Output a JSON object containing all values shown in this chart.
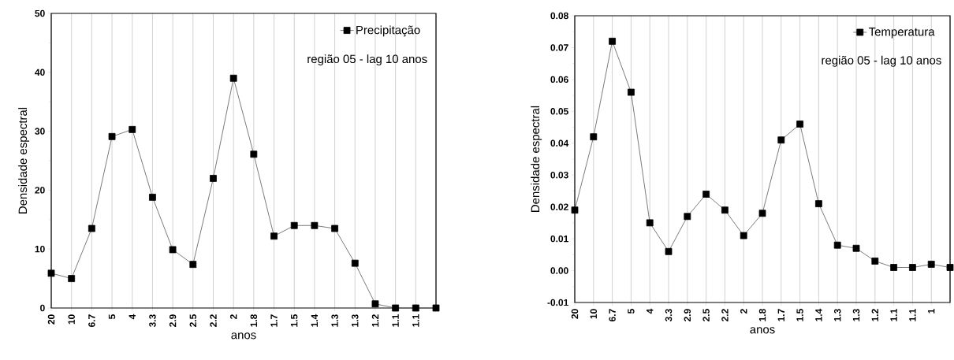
{
  "chart_data": [
    {
      "type": "line",
      "xlabel": "anos",
      "ylabel": "Densidade espectral",
      "categories": [
        "20",
        "10",
        "6.7",
        "5",
        "4",
        "3.3",
        "2.9",
        "2.5",
        "2.2",
        "2",
        "1.8",
        "1.7",
        "1.5",
        "1.4",
        "1.3",
        "1.3",
        "1.2",
        "1.1",
        "1.1",
        null
      ],
      "series": [
        {
          "name": "Precipitação",
          "color": "#000000",
          "values": [
            5.9,
            5.0,
            13.5,
            29.1,
            30.3,
            18.8,
            9.9,
            7.4,
            22.0,
            39.0,
            26.1,
            12.2,
            14.0,
            14.0,
            13.5,
            7.6,
            0.7,
            0,
            0,
            0
          ]
        }
      ],
      "ylim": [
        0,
        50
      ],
      "yticks": [
        0,
        10,
        20,
        30,
        40,
        50
      ],
      "grid": "x",
      "legend": "top right",
      "marker": "square",
      "annotations": [
        "região 05 - lag 10 anos"
      ]
    },
    {
      "type": "line",
      "xlabel": "anos",
      "ylabel": "Densidade espectral",
      "categories": [
        "20",
        "10",
        "6.7",
        "5",
        "4",
        "3.3",
        "2.9",
        "2.5",
        "2.2",
        "2",
        "1.8",
        "1.7",
        "1.5",
        "1.4",
        "1.3",
        "1.3",
        "1.2",
        "1.1",
        "1.1",
        "1",
        null
      ],
      "series": [
        {
          "name": "Temperatura",
          "color": "#000000",
          "values": [
            0.019,
            0.042,
            0.072,
            0.056,
            0.015,
            0.006,
            0.017,
            0.024,
            0.019,
            0.011,
            0.018,
            0.041,
            0.046,
            0.021,
            0.008,
            0.007,
            0.003,
            0.001,
            0.001,
            0.002,
            0.001
          ]
        }
      ],
      "ylim": [
        -0.01,
        0.08
      ],
      "yticks": [
        -0.01,
        {
          "value": 0,
          "label": "0.00"
        },
        0.01,
        0.02,
        0.03,
        0.04,
        0.05,
        0.06,
        0.07,
        0.08
      ],
      "grid": "x",
      "legend": "top right",
      "marker": "square",
      "annotations": [
        "região 05 - lag 10 anos"
      ]
    }
  ]
}
